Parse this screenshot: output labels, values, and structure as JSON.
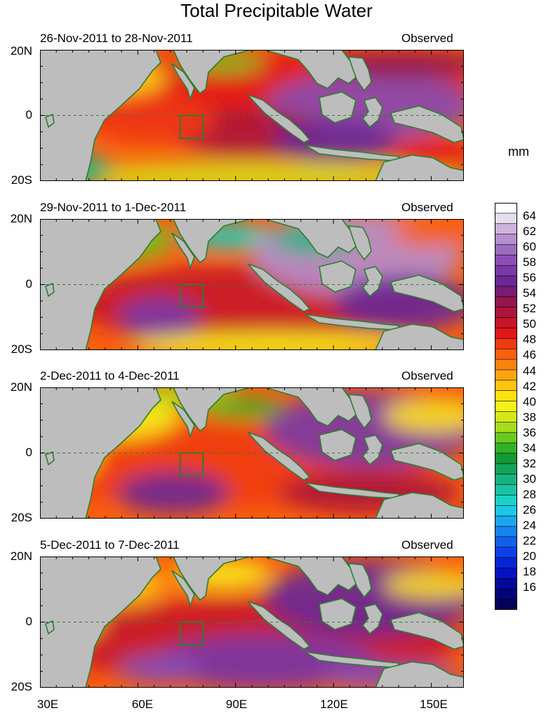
{
  "title": "Total Precipitable Water",
  "units": "mm",
  "panels": [
    {
      "date_range": "26-Nov-2011 to 28-Nov-2011",
      "label": "Observed"
    },
    {
      "date_range": "29-Nov-2011 to 1-Dec-2011",
      "label": "Observed"
    },
    {
      "date_range": "2-Dec-2011 to 4-Dec-2011",
      "label": "Observed"
    },
    {
      "date_range": "5-Dec-2011 to 7-Dec-2011",
      "label": "Observed"
    }
  ],
  "lat_labels": [
    "20N",
    "0",
    "20S"
  ],
  "lon_labels": [
    "30E",
    "60E",
    "90E",
    "120E",
    "150E"
  ],
  "colorbar": {
    "labels": [
      "64",
      "62",
      "60",
      "58",
      "56",
      "54",
      "52",
      "50",
      "48",
      "46",
      "44",
      "42",
      "40",
      "38",
      "36",
      "34",
      "32",
      "30",
      "28",
      "26",
      "24",
      "22",
      "20",
      "18",
      "16"
    ],
    "colors": [
      "#ffffff",
      "#e7ddee",
      "#cdb3de",
      "#b58fce",
      "#9c6cc0",
      "#8a4fb2",
      "#7a3aa6",
      "#6a2996",
      "#7a1c72",
      "#92164e",
      "#ad143a",
      "#c81428",
      "#e11818",
      "#f03a12",
      "#f8600e",
      "#fa830c",
      "#fba40c",
      "#fcc40e",
      "#fde012",
      "#f6f216",
      "#d4ea18",
      "#a6dc1c",
      "#6cc820",
      "#30b226",
      "#139a36",
      "#14a35a",
      "#16b380",
      "#18c3a4",
      "#1ad2c6",
      "#1cc8e6",
      "#1aa6ee",
      "#1582ee",
      "#1160ec",
      "#0c40e8",
      "#0824d8",
      "#0612c0",
      "#04089c",
      "#030478",
      "#020256"
    ]
  }
}
